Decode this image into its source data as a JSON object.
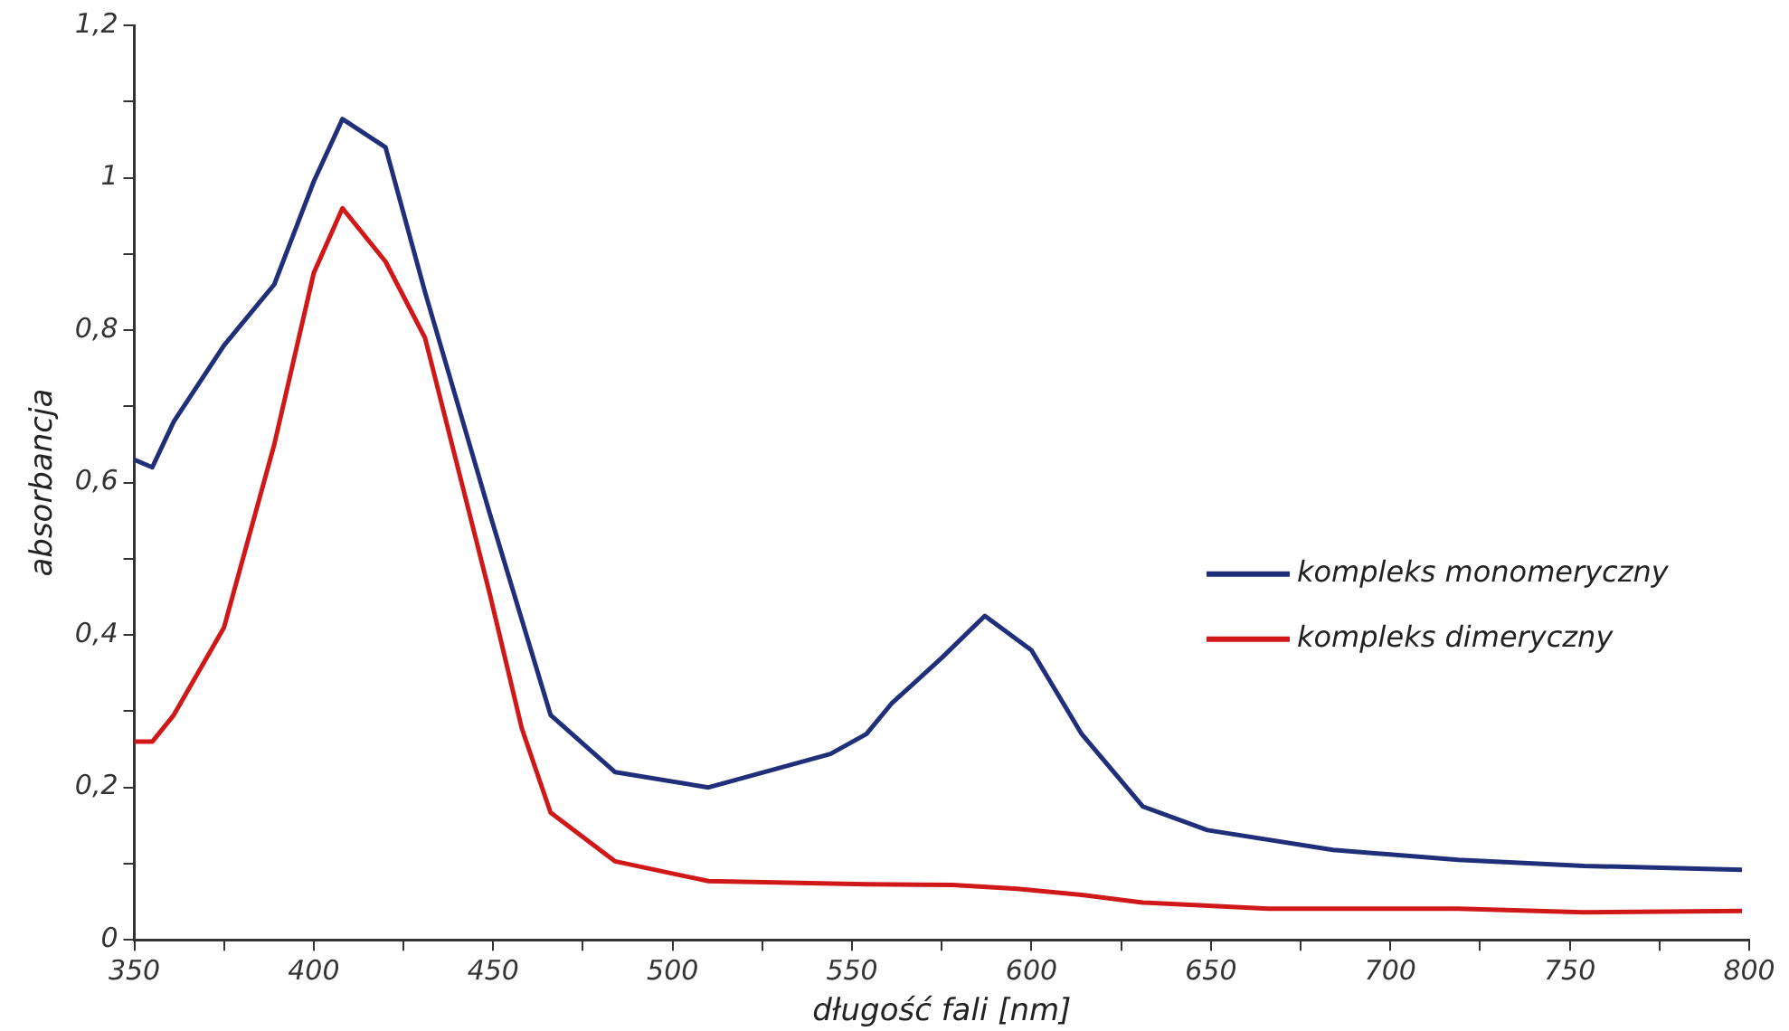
{
  "chart_data": {
    "type": "line",
    "xlabel": "długość fali [nm]",
    "ylabel": "absorbancja",
    "xlim": [
      350,
      800
    ],
    "ylim": [
      0,
      1.2
    ],
    "xticks": [
      350,
      {
        "value": 375,
        "label": null
      },
      400,
      {
        "value": 425,
        "label": null
      },
      450,
      {
        "value": 475,
        "label": null
      },
      500,
      {
        "value": 525,
        "label": null
      },
      550,
      {
        "value": 575,
        "label": null
      },
      600,
      {
        "value": 625,
        "label": null
      },
      650,
      {
        "value": 675,
        "label": null
      },
      700,
      {
        "value": 725,
        "label": null
      },
      750,
      {
        "value": 775,
        "label": null
      },
      800
    ],
    "yticks": [
      0,
      {
        "value": 0.1,
        "label": null
      },
      {
        "value": 0.2,
        "label": "0,2"
      },
      {
        "value": 0.3,
        "label": null
      },
      {
        "value": 0.4,
        "label": "0,4"
      },
      {
        "value": 0.5,
        "label": null
      },
      {
        "value": 0.6,
        "label": "0,6"
      },
      {
        "value": 0.7,
        "label": null
      },
      {
        "value": 0.8,
        "label": "0,8"
      },
      {
        "value": 0.9,
        "label": null
      },
      1,
      {
        "value": 1.1,
        "label": null
      },
      {
        "value": 1.2,
        "label": "1,2"
      }
    ],
    "grid": false,
    "legend": "right",
    "marker": "none",
    "line_style": "solid",
    "series": [
      {
        "name": "kompleks monomeryczny",
        "color": "#1f2f7a",
        "x": [
          350,
          355,
          361,
          375,
          389,
          400,
          408,
          420,
          431,
          449,
          466,
          484,
          510,
          544,
          554,
          561,
          575,
          587,
          600,
          614,
          631,
          649,
          684,
          719,
          754,
          798
        ],
        "values": [
          0.63,
          0.62,
          0.68,
          0.78,
          0.86,
          0.995,
          1.077,
          1.04,
          0.85,
          0.56,
          0.295,
          0.22,
          0.2,
          0.244,
          0.27,
          0.31,
          0.37,
          0.425,
          0.38,
          0.27,
          0.175,
          0.144,
          0.118,
          0.105,
          0.097,
          0.092
        ]
      },
      {
        "name": "kompleks dimeryczny",
        "color": "#d01818",
        "x": [
          350,
          355,
          361,
          375,
          389,
          400,
          408,
          420,
          431,
          449,
          458,
          466,
          484,
          510,
          554,
          578,
          596,
          614,
          631,
          666,
          719,
          754,
          798
        ],
        "values": [
          0.26,
          0.26,
          0.295,
          0.41,
          0.65,
          0.875,
          0.96,
          0.89,
          0.79,
          0.455,
          0.277,
          0.167,
          0.103,
          0.077,
          0.073,
          0.072,
          0.067,
          0.059,
          0.049,
          0.041,
          0.041,
          0.036,
          0.038
        ]
      }
    ]
  }
}
